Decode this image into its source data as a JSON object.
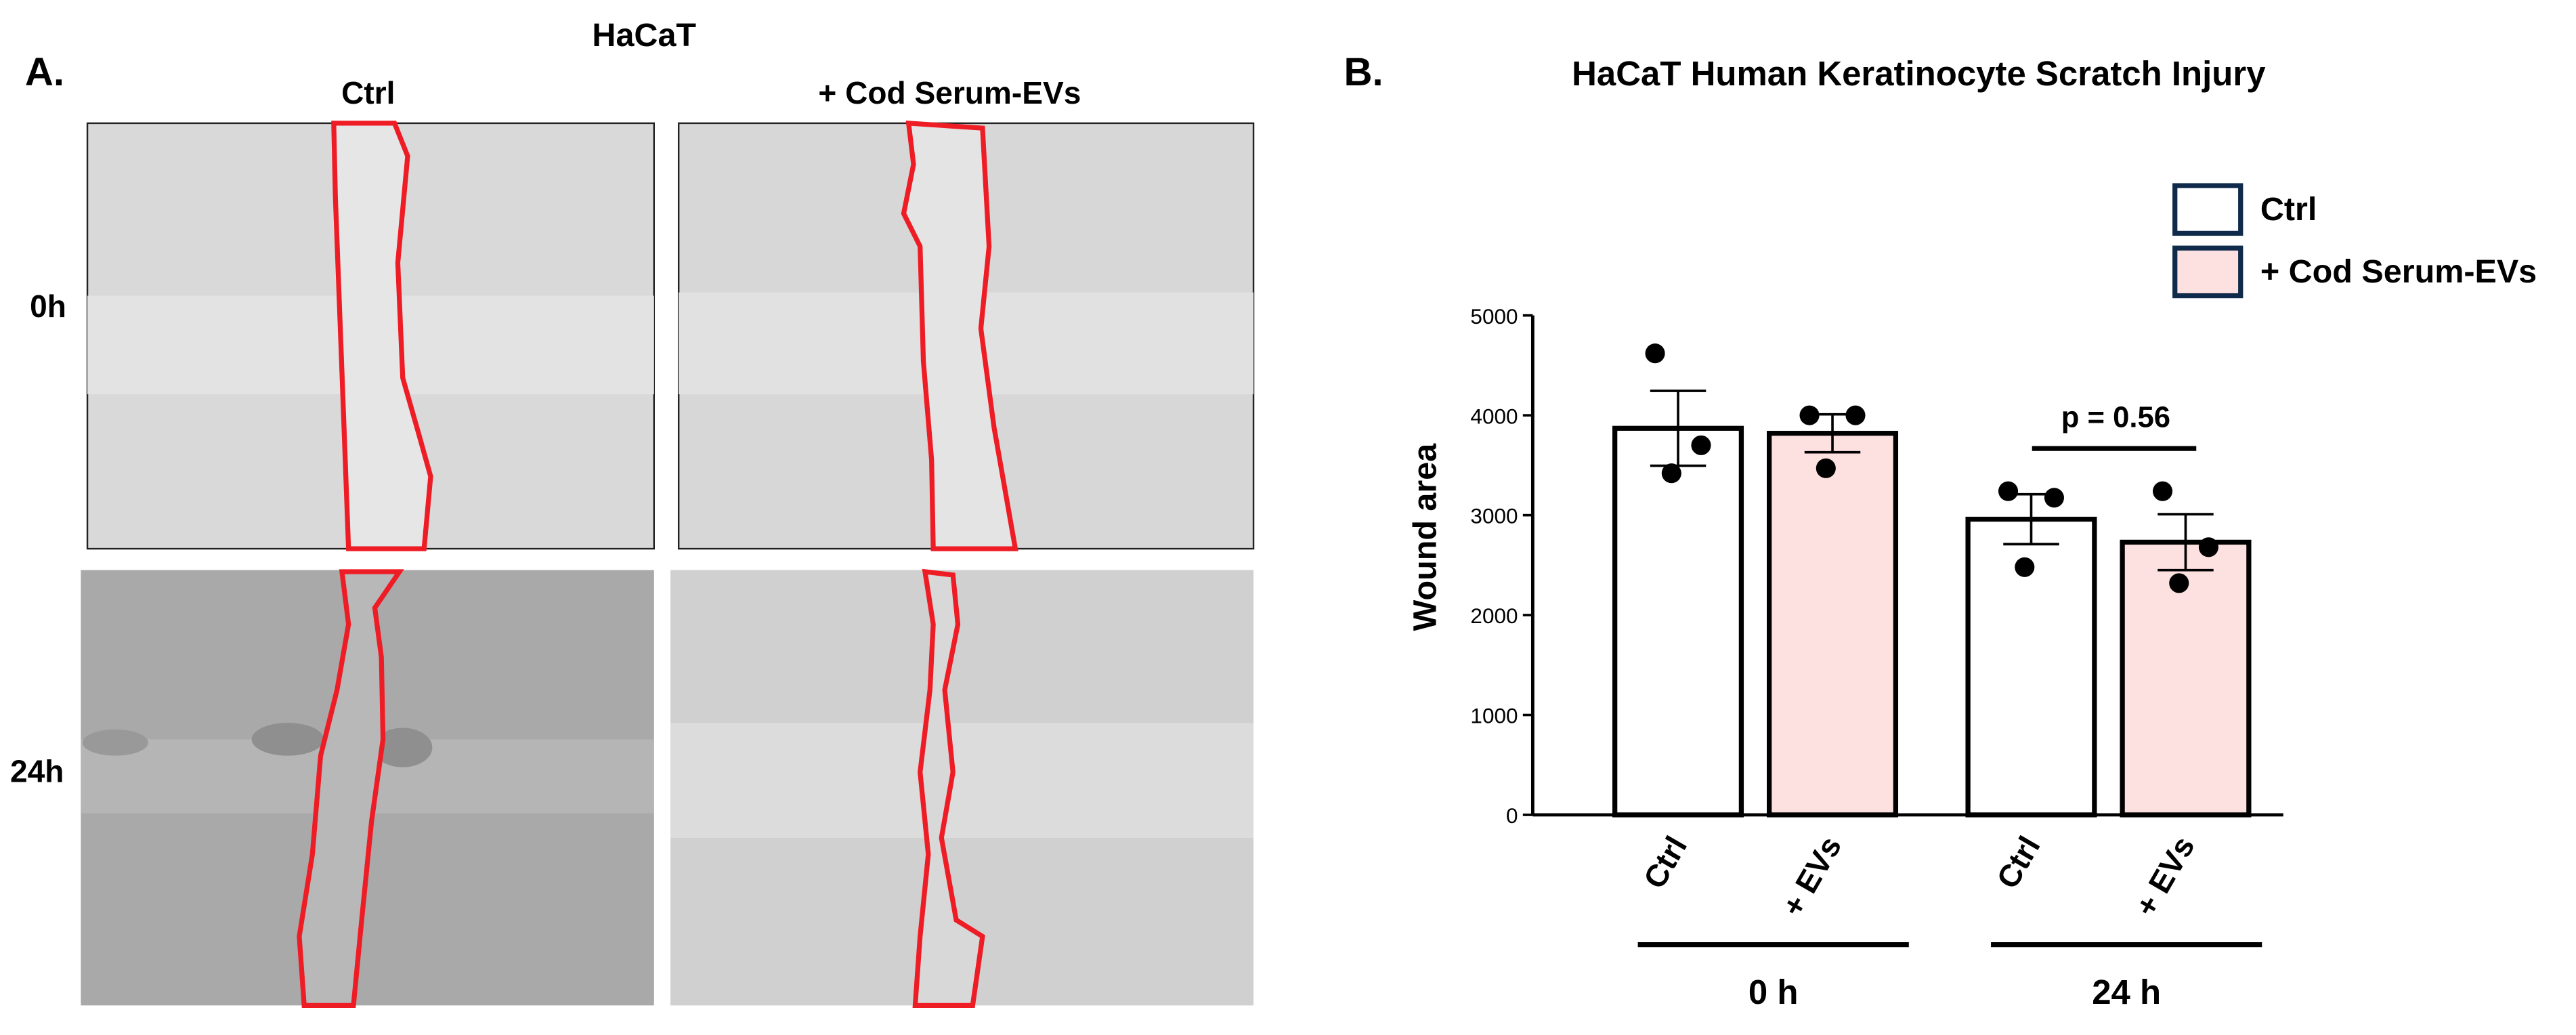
{
  "panel_a": {
    "label": "A.",
    "title": "HaCaT",
    "columns": [
      "Ctrl",
      "+ Cod Serum-EVs"
    ],
    "rows": [
      "0h",
      "24h"
    ]
  },
  "panel_b_label": "B.",
  "chart_data": {
    "type": "bar",
    "title": "HaCaT Human Keratinocyte Scratch Injury",
    "ylabel": "Wound area",
    "categories": [
      "0 h",
      "24 h"
    ],
    "series": [
      {
        "name": "Ctrl",
        "label": "Ctrl",
        "color": "#ffffff",
        "values": [
          3870,
          2960
        ],
        "errors": [
          375,
          250
        ],
        "points": [
          [
            4620,
            3700,
            3420
          ],
          [
            3240,
            3175,
            2480
          ]
        ]
      },
      {
        "name": "+ Cod Serum-EVs",
        "label": "+ EVs",
        "color": "#fde0e0",
        "values": [
          3820,
          2730
        ],
        "errors": [
          190,
          280
        ],
        "points": [
          [
            4000,
            4000,
            3470
          ],
          [
            3240,
            2680,
            2320
          ]
        ]
      }
    ],
    "ylim": [
      0,
      5000
    ],
    "yticks": [
      0,
      1000,
      2000,
      3000,
      4000,
      5000
    ],
    "annotation": "p = 0.56",
    "legend": "upper right"
  }
}
